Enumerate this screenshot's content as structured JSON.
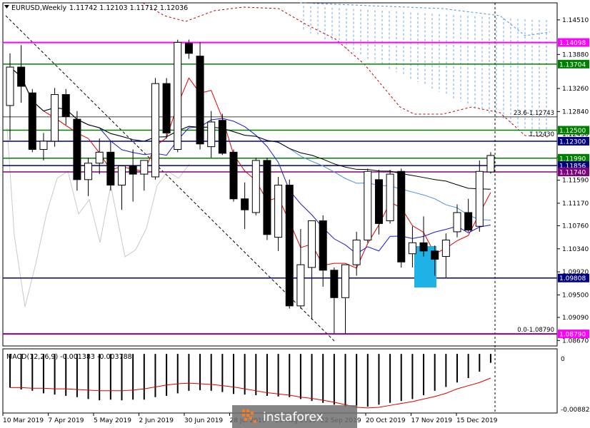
{
  "chart_data": {
    "type": "candlestick",
    "header": {
      "symbol": "EURUSD,Weekly",
      "ohlc": "1.11742 1.12103 1.11712 1.12036"
    },
    "y_axis": {
      "range": [
        1.0857,
        1.1482
      ],
      "ticks": [
        "1.14510",
        "1.13880",
        "1.13260",
        "1.12840",
        "1.12430",
        "1.12010",
        "1.11590",
        "1.11170",
        "1.10760",
        "1.10340",
        "1.09920",
        "1.09500",
        "1.09090",
        "1.08670"
      ]
    },
    "x_axis": {
      "ticks": [
        "10 Mar 2019",
        "7 Apr 2019",
        "5 May 2019",
        "2 Jun 2019",
        "30 Jun 2019",
        "28 Jul 2019",
        "25 Aug 2019",
        "22 Sep 2019",
        "20 Oct 2019",
        "17 Nov 2019",
        "15 Dec 2019"
      ]
    },
    "candles": [
      [
        1.1295,
        1.139,
        1.1232,
        1.1365
      ],
      [
        1.1365,
        1.1405,
        1.13,
        1.133
      ],
      [
        1.1318,
        1.1325,
        1.121,
        1.1215
      ],
      [
        1.1215,
        1.1245,
        1.1195,
        1.123
      ],
      [
        1.123,
        1.1327,
        1.122,
        1.1315
      ],
      [
        1.1315,
        1.1325,
        1.126,
        1.1275
      ],
      [
        1.127,
        1.1285,
        1.114,
        1.116
      ],
      [
        1.116,
        1.12,
        1.113,
        1.119
      ],
      [
        1.119,
        1.1235,
        1.117,
        1.121
      ],
      [
        1.121,
        1.123,
        1.114,
        1.115
      ],
      [
        1.115,
        1.1185,
        1.1105,
        1.1185
      ],
      [
        1.1185,
        1.1215,
        1.112,
        1.117
      ],
      [
        1.117,
        1.1195,
        1.114,
        1.1195
      ],
      [
        1.1165,
        1.1345,
        1.116,
        1.1335
      ],
      [
        1.1335,
        1.1345,
        1.1235,
        1.1245
      ],
      [
        1.1215,
        1.1415,
        1.121,
        1.141
      ],
      [
        1.1408,
        1.1415,
        1.138,
        1.139
      ],
      [
        1.1385,
        1.141,
        1.1215,
        1.1225
      ],
      [
        1.122,
        1.1285,
        1.12,
        1.1265
      ],
      [
        1.1268,
        1.128,
        1.1205,
        1.1208
      ],
      [
        1.121,
        1.1215,
        1.112,
        1.1125
      ],
      [
        1.1125,
        1.1155,
        1.107,
        1.1105
      ],
      [
        1.11,
        1.12,
        1.1095,
        1.1195
      ],
      [
        1.1195,
        1.12,
        1.105,
        1.106
      ],
      [
        1.1055,
        1.1165,
        1.103,
        1.115
      ],
      [
        1.115,
        1.116,
        1.0925,
        1.093
      ],
      [
        1.093,
        1.107,
        1.0925,
        1.1005
      ],
      [
        1.1,
        1.1085,
        1.0905,
        1.1085
      ],
      [
        1.1085,
        1.1095,
        1.0965,
        1.0995
      ],
      [
        1.0995,
        1.1,
        1.088,
        1.0945
      ],
      [
        1.0945,
        1.1005,
        1.088,
        1.1005
      ],
      [
        1.1005,
        1.1065,
        1.0985,
        1.105
      ],
      [
        1.105,
        1.118,
        1.1045,
        1.1175
      ],
      [
        1.116,
        1.1178,
        1.106,
        1.108
      ],
      [
        1.1085,
        1.1178,
        1.108,
        1.117
      ],
      [
        1.1175,
        1.118,
        1.1,
        1.101
      ],
      [
        1.1025,
        1.1075,
        1.1,
        1.1045
      ],
      [
        1.1045,
        1.1093,
        1.102,
        1.103
      ],
      [
        1.103,
        1.104,
        1.0985,
        1.1015
      ],
      [
        1.102,
        1.1062,
        1.098,
        1.105
      ],
      [
        1.1065,
        1.1115,
        1.1055,
        1.11
      ],
      [
        1.11,
        1.1125,
        1.1065,
        1.1068
      ],
      [
        1.1075,
        1.1195,
        1.1065,
        1.1175
      ],
      [
        1.1174,
        1.121,
        1.1171,
        1.1204
      ]
    ],
    "price_lines": [
      {
        "value": 1.14098,
        "label": "1.14098",
        "color": "#ff00ff"
      },
      {
        "value": 1.13704,
        "label": "1.13704",
        "color": "#008000"
      },
      {
        "value": 1.125,
        "label": "1.12500",
        "color": "#008000"
      },
      {
        "value": 1.123,
        "label": "1.12300",
        "color": "#000080"
      },
      {
        "value": 1.1199,
        "label": "1.11990",
        "color": "#008000"
      },
      {
        "value": 1.11856,
        "label": "1.11856",
        "color": "#000080"
      },
      {
        "value": 1.1174,
        "label": "1.11740",
        "color": "#800080"
      },
      {
        "value": 1.09808,
        "label": "1.09808",
        "color": "#000080"
      },
      {
        "value": 1.0879,
        "label": "1.08790",
        "color": "#ff00ff"
      }
    ],
    "fibo_lines": [
      {
        "value": 1.12743,
        "label": "23.6-1.12743"
      },
      {
        "value": 1.0879,
        "label": "0.0-1.08790"
      }
    ],
    "annotations": [
      "1.12430"
    ],
    "macd": {
      "label": "MACD(12,26,9) -0.001383 -0.003788",
      "ticks": [
        "0",
        "-0.008822"
      ],
      "range": [
        -0.0093,
        0.0008
      ],
      "histogram": [
        -0.0053,
        -0.0056,
        -0.0058,
        -0.0062,
        -0.0064,
        -0.0066,
        -0.0068,
        -0.0071,
        -0.0073,
        -0.0072,
        -0.0073,
        -0.0072,
        -0.0072,
        -0.0068,
        -0.0066,
        -0.0062,
        -0.0058,
        -0.0057,
        -0.0058,
        -0.006,
        -0.0063,
        -0.0064,
        -0.0065,
        -0.0066,
        -0.0067,
        -0.0068,
        -0.0071,
        -0.0074,
        -0.0077,
        -0.008,
        -0.0083,
        -0.0085,
        -0.0083,
        -0.008,
        -0.0077,
        -0.0074,
        -0.0071,
        -0.0065,
        -0.0058,
        -0.0052,
        -0.0045,
        -0.0038,
        -0.0028,
        -0.0014
      ],
      "signal": [
        -0.0053,
        -0.0053,
        -0.0054,
        -0.0054,
        -0.0055,
        -0.0055,
        -0.0056,
        -0.0057,
        -0.0058,
        -0.0058,
        -0.0058,
        -0.0057,
        -0.0055,
        -0.0052,
        -0.0049,
        -0.0047,
        -0.0046,
        -0.0047,
        -0.0048,
        -0.005,
        -0.0052,
        -0.0055,
        -0.0058,
        -0.0061,
        -0.0063,
        -0.0065,
        -0.0068,
        -0.007,
        -0.0073,
        -0.0076,
        -0.008,
        -0.0084,
        -0.0085,
        -0.0084,
        -0.0081,
        -0.0078,
        -0.0075,
        -0.0071,
        -0.0067,
        -0.0062,
        -0.0055,
        -0.005,
        -0.0045,
        -0.0038
      ]
    },
    "watermark": "instaforex"
  }
}
